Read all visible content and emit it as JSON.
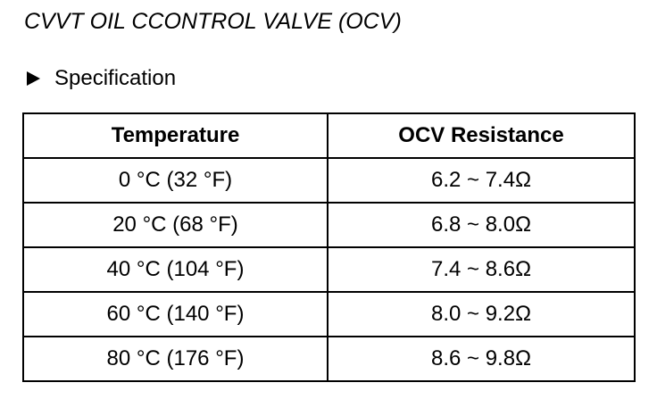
{
  "document": {
    "title": "CVVT OIL CCONTROL VALVE (OCV)",
    "section_label": "Specification"
  },
  "table": {
    "headers": [
      "Temperature",
      "OCV Resistance"
    ],
    "rows": [
      [
        "0 °C (32 °F)",
        "6.2 ~ 7.4Ω"
      ],
      [
        "20 °C (68 °F)",
        "6.8 ~ 8.0Ω"
      ],
      [
        "40 °C (104 °F)",
        "7.4 ~ 8.6Ω"
      ],
      [
        "60 °C (140 °F)",
        "8.0 ~ 9.2Ω"
      ],
      [
        "80 °C (176 °F)",
        "8.6 ~ 9.8Ω"
      ]
    ]
  },
  "icons": {
    "bullet": "triangle-right-icon"
  }
}
